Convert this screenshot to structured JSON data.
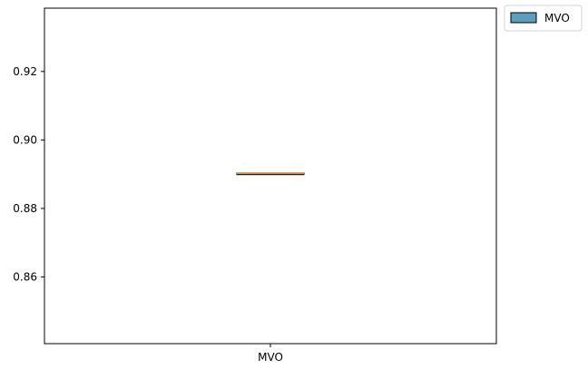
{
  "chart_data": {
    "type": "box",
    "categories": [
      "MVO"
    ],
    "series": [
      {
        "name": "MVO",
        "color": "#5b9fbd",
        "median_color": "#f07f21",
        "whisker_low": 0.8902,
        "q1": 0.8902,
        "median": 0.8902,
        "q3": 0.8902,
        "whisker_high": 0.8902
      }
    ],
    "title": "",
    "xlabel": "",
    "ylabel": "",
    "ylim": [
      0.8405,
      0.9385
    ],
    "yticks": [
      0.86,
      0.88,
      0.9,
      0.92
    ],
    "ytick_labels": [
      "0.86",
      "0.88",
      "0.90",
      "0.92"
    ],
    "grid": false,
    "legend": {
      "entries": [
        "MVO"
      ],
      "placement": "outside-top-right"
    }
  }
}
